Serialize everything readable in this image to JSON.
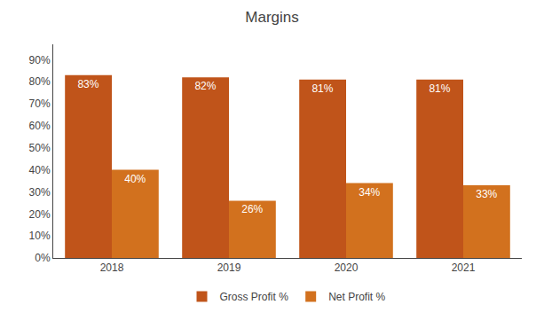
{
  "chart_data": {
    "type": "bar",
    "title": "Margins",
    "categories": [
      "2018",
      "2019",
      "2020",
      "2021"
    ],
    "series": [
      {
        "name": "Gross Profit %",
        "color": "#C0541A",
        "values": [
          0.83,
          0.82,
          0.81,
          0.81
        ],
        "value_labels": [
          "83%",
          "82%",
          "81%",
          "81%"
        ]
      },
      {
        "name": "Net Profit %",
        "color": "#D2711E",
        "values": [
          0.4,
          0.26,
          0.34,
          0.33
        ],
        "value_labels": [
          "40%",
          "26%",
          "34%",
          "33%"
        ]
      }
    ],
    "ylim": [
      0,
      0.97
    ],
    "yticks": [
      {
        "value": 0.0,
        "label": "0%"
      },
      {
        "value": 0.1,
        "label": "10%"
      },
      {
        "value": 0.2,
        "label": "20%"
      },
      {
        "value": 0.3,
        "label": "30%"
      },
      {
        "value": 0.4,
        "label": "40%"
      },
      {
        "value": 0.5,
        "label": "50%"
      },
      {
        "value": 0.6,
        "label": "60%"
      },
      {
        "value": 0.7,
        "label": "70%"
      },
      {
        "value": 0.8,
        "label": "80%"
      },
      {
        "value": 0.9,
        "label": "90%"
      }
    ],
    "grid": false,
    "legend": "bottom",
    "data_labels": true
  }
}
